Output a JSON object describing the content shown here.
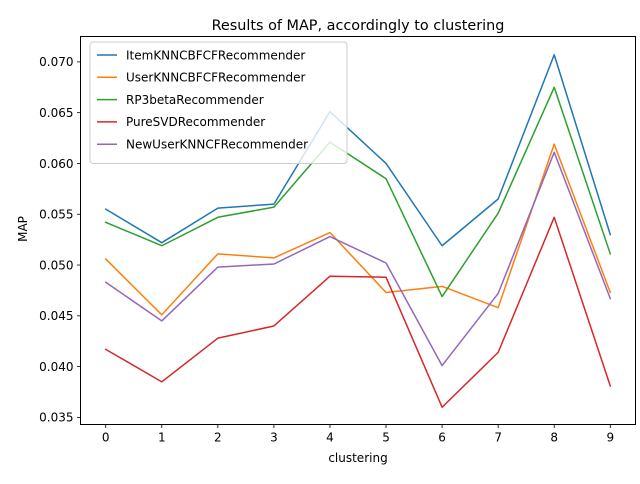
{
  "chart_data": {
    "type": "line",
    "title": "Results of MAP, accordingly to clustering",
    "xlabel": "clustering",
    "ylabel": "MAP",
    "x": [
      0,
      1,
      2,
      3,
      4,
      5,
      6,
      7,
      8,
      9
    ],
    "xlim": [
      -0.45,
      9.45
    ],
    "ylim": [
      0.0343,
      0.0725
    ],
    "yticks": [
      0.035,
      0.04,
      0.045,
      0.05,
      0.055,
      0.06,
      0.065,
      0.07
    ],
    "ytick_labels": [
      "0.035",
      "0.040",
      "0.045",
      "0.050",
      "0.055",
      "0.060",
      "0.065",
      "0.070"
    ],
    "xtick_labels": [
      "0",
      "1",
      "2",
      "3",
      "4",
      "5",
      "6",
      "7",
      "8",
      "9"
    ],
    "grid": false,
    "legend_position": "upper-left",
    "series": [
      {
        "name": "ItemKNNCBFCFRecommender",
        "color": "#1f77b4",
        "values": [
          0.0555,
          0.0522,
          0.0556,
          0.056,
          0.0651,
          0.06,
          0.0519,
          0.0565,
          0.0707,
          0.053
        ]
      },
      {
        "name": "UserKNNCBFCFRecommender",
        "color": "#ff7f0e",
        "values": [
          0.0506,
          0.0451,
          0.0511,
          0.0507,
          0.0532,
          0.0473,
          0.0479,
          0.0458,
          0.0619,
          0.0473
        ]
      },
      {
        "name": "RP3betaRecommender",
        "color": "#2ca02c",
        "values": [
          0.0542,
          0.0519,
          0.0547,
          0.0557,
          0.0621,
          0.0585,
          0.0469,
          0.0551,
          0.0675,
          0.0511
        ]
      },
      {
        "name": "PureSVDRecommender",
        "color": "#d62728",
        "values": [
          0.0417,
          0.0385,
          0.0428,
          0.044,
          0.0489,
          0.0488,
          0.036,
          0.0414,
          0.0547,
          0.0381
        ]
      },
      {
        "name": "NewUserKNNCFRecommender",
        "color": "#9467bd",
        "values": [
          0.0483,
          0.0445,
          0.0498,
          0.0501,
          0.0528,
          0.0502,
          0.0401,
          0.0472,
          0.0611,
          0.0467
        ]
      }
    ]
  }
}
